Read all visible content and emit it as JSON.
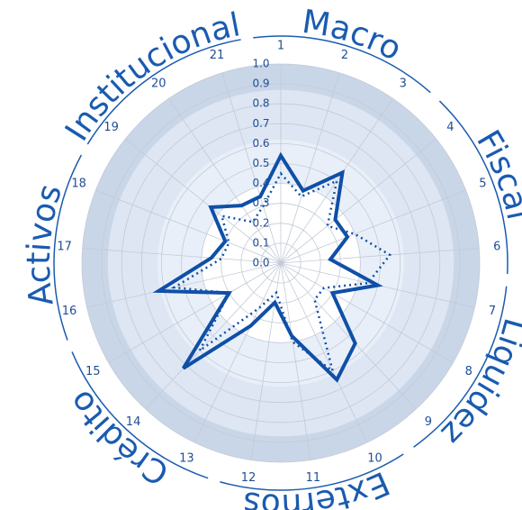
{
  "chart_data": {
    "type": "radar",
    "categories": [
      "1",
      "2",
      "3",
      "4",
      "5",
      "6",
      "7",
      "8",
      "9",
      "10",
      "11",
      "12",
      "13",
      "14",
      "15",
      "16",
      "17",
      "18",
      "19",
      "20",
      "21"
    ],
    "groups": [
      {
        "name": "Macro",
        "from": 1,
        "to": 3
      },
      {
        "name": "Fiscal",
        "from": 4,
        "to": 6
      },
      {
        "name": "Liquidez",
        "from": 7,
        "to": 9
      },
      {
        "name": "Externos",
        "from": 10,
        "to": 12
      },
      {
        "name": "Crédito",
        "from": 13,
        "to": 15
      },
      {
        "name": "Activos",
        "from": 16,
        "to": 18
      },
      {
        "name": "Institucional",
        "from": 19,
        "to": 21
      }
    ],
    "rlim": [
      0,
      1
    ],
    "rticks": [
      {
        "value": 0,
        "label": "0.0"
      },
      0.1,
      0.2,
      0.3,
      0.4,
      0.5,
      0.6,
      0.7,
      0.8,
      0.9,
      {
        "value": 1,
        "label": "1.0"
      }
    ],
    "series": [
      {
        "style": "solid",
        "color": "#0f4fa8",
        "values": [
          0.54,
          0.38,
          0.55,
          0.35,
          0.36,
          0.25,
          0.5,
          0.3,
          0.55,
          0.65,
          0.37,
          0.2,
          0.35,
          0.72,
          0.3,
          0.63,
          0.35,
          0.3,
          0.45,
          0.35,
          0.35
        ]
      },
      {
        "style": "dotted",
        "color": "#0f4fa8",
        "values": [
          0.45,
          0.35,
          0.5,
          0.3,
          0.4,
          0.55,
          0.45,
          0.25,
          0.25,
          0.6,
          0.4,
          0.15,
          0.25,
          0.6,
          0.3,
          0.55,
          0.3,
          0.28,
          0.38,
          0.25,
          0.3
        ]
      }
    ]
  }
}
